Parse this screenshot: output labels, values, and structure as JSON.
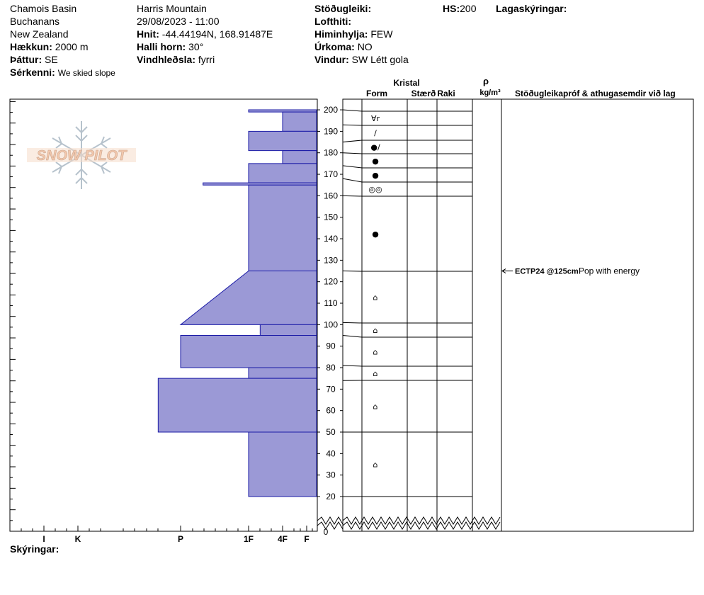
{
  "header": {
    "col1": [
      "Chamois Basin",
      "Buchanans",
      "New Zealand"
    ],
    "elevation": {
      "label": "Hækkun:",
      "value": "2000 m"
    },
    "aspect": {
      "label": "Þáttur:",
      "value": "SE"
    },
    "features": {
      "label": "Sérkenni:",
      "value": "We skied slope"
    },
    "location": "Harris Mountain",
    "datetime": "29/08/2023 - 11:00",
    "coords": {
      "label": "Hnit:",
      "value": "-44.44194N, 168.91487E"
    },
    "slope": {
      "label": "Halli horn:",
      "value": "30°"
    },
    "wind_loading": {
      "label": "Vindhleðsla:",
      "value": "fyrri"
    },
    "stability": {
      "label": "Stöðugleiki:",
      "value": ""
    },
    "air_temp": {
      "label": "Lofthiti:",
      "value": ""
    },
    "sky": {
      "label": "Himinhylja:",
      "value": "FEW"
    },
    "precip": {
      "label": "Úrkoma:",
      "value": "NO"
    },
    "wind": {
      "label": "Vindur:",
      "value": "SW Létt gola"
    },
    "hs": {
      "label": "HS:",
      "value": "200"
    },
    "layer_notes": {
      "label": "Lagaskýringar:"
    }
  },
  "footer": {
    "notes_label": "Skýringar:"
  },
  "logo": {
    "text": "SNOW PILOT"
  },
  "columns": {
    "crystal": "Kristal",
    "form": "Form",
    "size": "Stærð",
    "moisture": "Raki",
    "rho": "ρ",
    "density_unit": "kg/m³",
    "tests": "Stöðugleikapróf & athugasemdir við lag"
  },
  "chart_data": {
    "type": "snow_profile",
    "y_axis": {
      "min": 0,
      "max": 200,
      "ticks": [
        20,
        30,
        40,
        50,
        60,
        70,
        80,
        90,
        100,
        110,
        120,
        130,
        140,
        150,
        160,
        170,
        180,
        190,
        200
      ],
      "zero_label": "0"
    },
    "hardness_scale": [
      "I",
      "K",
      "P",
      "1F",
      "4F",
      "F"
    ],
    "hardness_scale_note": "index value used for plotting: 0=F (right edge), larger = harder (further left)",
    "layers": [
      {
        "top": 200,
        "bottom": 199,
        "hardness_top": 1.0,
        "hardness_bottom": 1.0
      },
      {
        "top": 199,
        "bottom": 190,
        "hardness_top": 0.5,
        "hardness_bottom": 0.5
      },
      {
        "top": 190,
        "bottom": 181,
        "hardness_top": 1.0,
        "hardness_bottom": 1.0
      },
      {
        "top": 181,
        "bottom": 175,
        "hardness_top": 0.5,
        "hardness_bottom": 0.5
      },
      {
        "top": 175,
        "bottom": 166,
        "hardness_top": 1.0,
        "hardness_bottom": 1.0
      },
      {
        "top": 166,
        "bottom": 165,
        "hardness_top": 1.67,
        "hardness_bottom": 1.67
      },
      {
        "top": 165,
        "bottom": 125,
        "hardness_top": 1.0,
        "hardness_bottom": 1.0
      },
      {
        "top": 125,
        "bottom": 100,
        "hardness_top": 1.0,
        "hardness_bottom": 2.0
      },
      {
        "top": 100,
        "bottom": 95,
        "hardness_top": 0.83,
        "hardness_bottom": 0.83
      },
      {
        "top": 95,
        "bottom": 80,
        "hardness_top": 2.0,
        "hardness_bottom": 2.0
      },
      {
        "top": 80,
        "bottom": 75,
        "hardness_top": 1.0,
        "hardness_bottom": 1.0
      },
      {
        "top": 75,
        "bottom": 50,
        "hardness_top": 2.33,
        "hardness_bottom": 2.33
      },
      {
        "top": 50,
        "bottom": 20,
        "hardness_top": 1.0,
        "hardness_bottom": 1.0
      }
    ],
    "grain_layers": [
      {
        "top": 200,
        "bottom": 193,
        "symbol": "∀r"
      },
      {
        "top": 193,
        "bottom": 185,
        "symbol": "/"
      },
      {
        "top": 185,
        "bottom": 180,
        "symbol": "●/"
      },
      {
        "top": 180,
        "bottom": 174,
        "symbol": "●"
      },
      {
        "top": 174,
        "bottom": 168,
        "symbol": "●"
      },
      {
        "top": 168,
        "bottom": 160,
        "symbol": "◎◎"
      },
      {
        "top": 160,
        "bottom": 125,
        "symbol": "●"
      },
      {
        "top": 125,
        "bottom": 101,
        "symbol": "⌂"
      },
      {
        "top": 101,
        "bottom": 95,
        "symbol": "⌂"
      },
      {
        "top": 95,
        "bottom": 81,
        "symbol": "⌂"
      },
      {
        "top": 81,
        "bottom": 74,
        "symbol": "⌂"
      },
      {
        "top": 74,
        "bottom": 50,
        "symbol": "⌂"
      },
      {
        "top": 50,
        "bottom": 20,
        "symbol": "⌂"
      }
    ],
    "stability_tests": [
      {
        "depth": 125,
        "code": "ECTP24 @125cm",
        "comment": "Pop with energy"
      }
    ]
  }
}
